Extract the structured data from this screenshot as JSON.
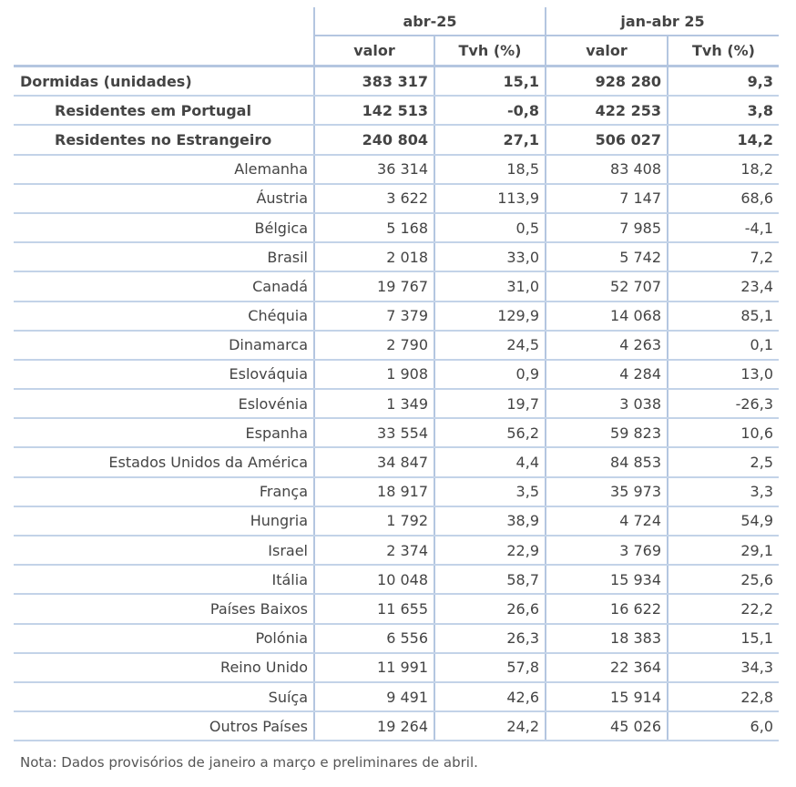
{
  "table": {
    "groups": [
      "abr-25",
      "jan-abr 25"
    ],
    "subheaders": [
      "valor",
      "Tvh (%)",
      "valor",
      "Tvh (%)"
    ],
    "rows": [
      [
        "Dormidas (unidades)",
        "383 317",
        "15,1",
        "928 280",
        "9,3"
      ],
      [
        "Residentes em Portugal",
        "142 513",
        "-0,8",
        "422 253",
        "3,8"
      ],
      [
        "Residentes no Estrangeiro",
        "240 804",
        "27,1",
        "506 027",
        "14,2"
      ],
      [
        "Alemanha",
        "36 314",
        "18,5",
        "83 408",
        "18,2"
      ],
      [
        "Áustria",
        "3 622",
        "113,9",
        "7 147",
        "68,6"
      ],
      [
        "Bélgica",
        "5 168",
        "0,5",
        "7 985",
        "-4,1"
      ],
      [
        "Brasil",
        "2 018",
        "33,0",
        "5 742",
        "7,2"
      ],
      [
        "Canadá",
        "19 767",
        "31,0",
        "52 707",
        "23,4"
      ],
      [
        "Chéquia",
        "7 379",
        "129,9",
        "14 068",
        "85,1"
      ],
      [
        "Dinamarca",
        "2 790",
        "24,5",
        "4 263",
        "0,1"
      ],
      [
        "Eslováquia",
        "1 908",
        "0,9",
        "4 284",
        "13,0"
      ],
      [
        "Eslovénia",
        "1 349",
        "19,7",
        "3 038",
        "-26,3"
      ],
      [
        "Espanha",
        "33 554",
        "56,2",
        "59 823",
        "10,6"
      ],
      [
        "Estados Unidos da América",
        "34 847",
        "4,4",
        "84 853",
        "2,5"
      ],
      [
        "França",
        "18 917",
        "3,5",
        "35 973",
        "3,3"
      ],
      [
        "Hungria",
        "1 792",
        "38,9",
        "4 724",
        "54,9"
      ],
      [
        "Israel",
        "2 374",
        "22,9",
        "3 769",
        "29,1"
      ],
      [
        "Itália",
        "10 048",
        "58,7",
        "15 934",
        "25,6"
      ],
      [
        "Países Baixos",
        "11 655",
        "26,6",
        "16 622",
        "22,2"
      ],
      [
        "Polónia",
        "6 556",
        "26,3",
        "18 383",
        "15,1"
      ],
      [
        "Reino Unido",
        "11 991",
        "57,8",
        "22 364",
        "34,3"
      ],
      [
        "Suíça",
        "9 491",
        "42,6",
        "15 914",
        "22,8"
      ],
      [
        "Outros Países",
        "19 264",
        "24,2",
        "45 026",
        "6,0"
      ]
    ]
  },
  "note": "Nota: Dados provisórios de janeiro a março e preliminares de abril."
}
